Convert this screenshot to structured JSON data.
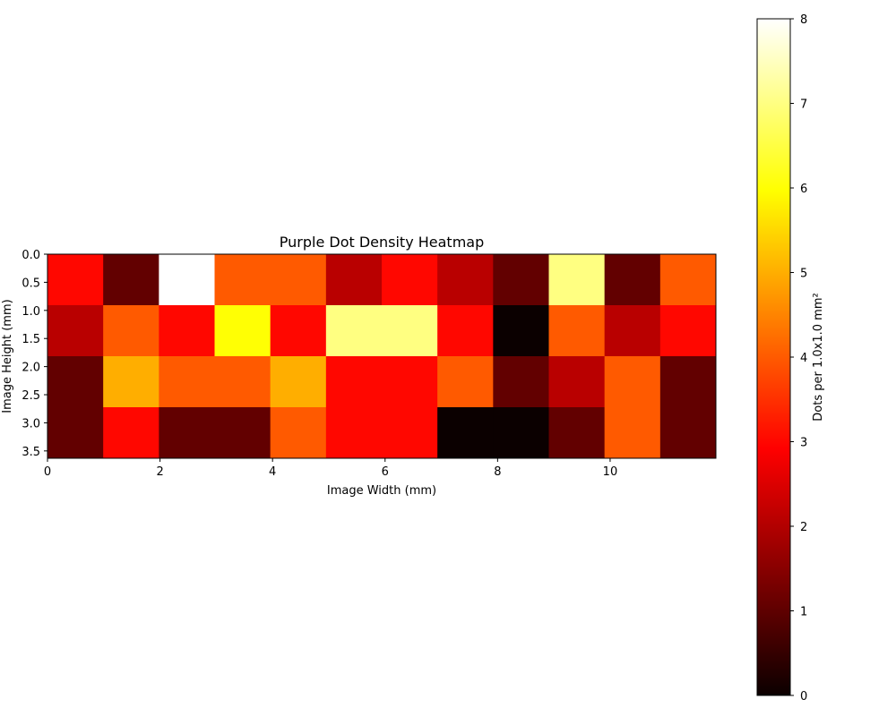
{
  "chart_data": {
    "type": "heatmap",
    "title": "Purple Dot Density Heatmap",
    "xlabel": "Image Width (mm)",
    "ylabel": "Image Height (mm)",
    "colorbar_label": "Dots per 1.0x1.0 mm²",
    "colormap": "hot",
    "xlim": [
      0,
      11.88
    ],
    "ylim": [
      3.63,
      0
    ],
    "x_ticks": [
      0,
      2,
      4,
      6,
      8,
      10
    ],
    "y_ticks": [
      0.0,
      0.5,
      1.0,
      1.5,
      2.0,
      2.5,
      3.0,
      3.5
    ],
    "colorbar_ticks": [
      0,
      1,
      2,
      3,
      4,
      5,
      6,
      7,
      8
    ],
    "vmin": 0,
    "vmax": 8,
    "grid": false,
    "values": [
      [
        3,
        1,
        8,
        4,
        4,
        2,
        3,
        2,
        1,
        7,
        1,
        4
      ],
      [
        2,
        4,
        3,
        6,
        3,
        7,
        7,
        3,
        0,
        4,
        2,
        3
      ],
      [
        1,
        5,
        4,
        4,
        5,
        3,
        3,
        4,
        1,
        2,
        4,
        1
      ],
      [
        1,
        3,
        1,
        1,
        4,
        3,
        3,
        0,
        0,
        1,
        4,
        1
      ]
    ]
  }
}
